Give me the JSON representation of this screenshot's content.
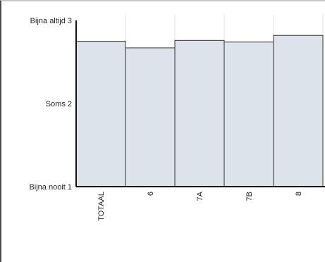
{
  "chart_data": {
    "type": "bar",
    "categories": [
      "TOTAAL",
      "6",
      "7A",
      "7B",
      "8"
    ],
    "values": [
      2.75,
      2.67,
      2.76,
      2.74,
      2.82
    ],
    "ylim": [
      1,
      3
    ],
    "y_ticks": [
      {
        "value": 3,
        "label": "Bijna altijd 3"
      },
      {
        "value": 2,
        "label": "Soms 2"
      },
      {
        "value": 1,
        "label": "Bijna nooit 1"
      }
    ],
    "grid": true,
    "bar_color": "#dde3ea",
    "bar_stroke": "#333333",
    "grid_color": "#e2e2e2"
  }
}
